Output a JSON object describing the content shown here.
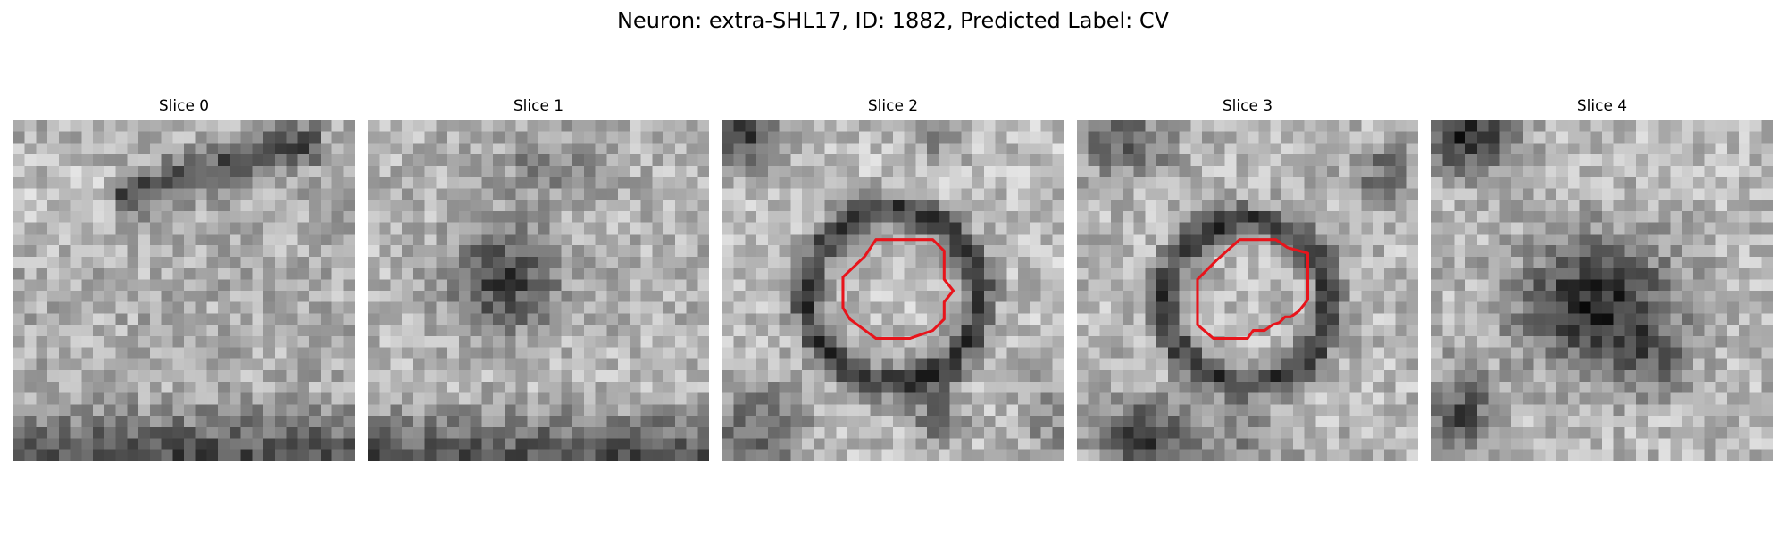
{
  "figure": {
    "title": "Neuron: extra-SHL17, ID: 1882, Predicted Label: CV"
  },
  "colors": {
    "contour": "#e8141b",
    "background": "#ffffff"
  },
  "slices": [
    {
      "title": "Slice 0",
      "contour": false
    },
    {
      "title": "Slice 1",
      "contour": false
    },
    {
      "title": "Slice 2",
      "contour": true
    },
    {
      "title": "Slice 3",
      "contour": true
    },
    {
      "title": "Slice 4",
      "contour": false
    }
  ]
}
